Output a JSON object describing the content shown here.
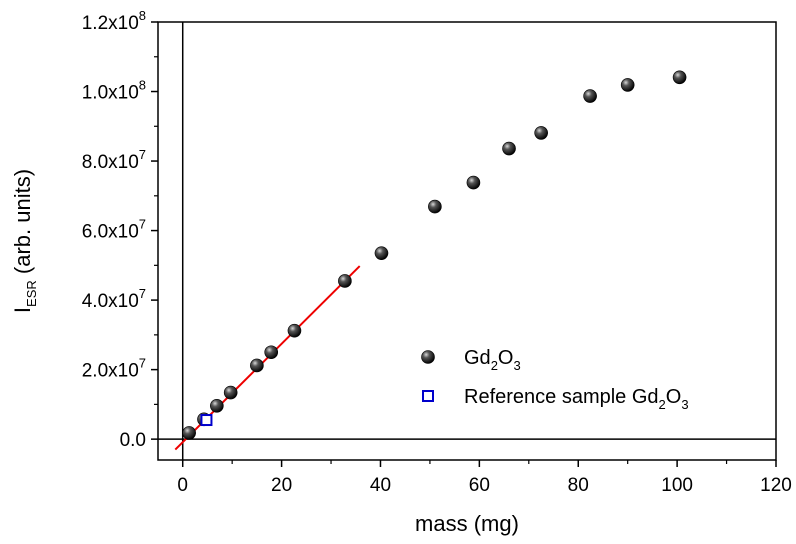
{
  "chart_data": {
    "type": "scatter",
    "title": "",
    "xlabel": "mass (mg)",
    "ylabel": {
      "base": "I",
      "sub": "ESR",
      "rest": " (arb. units)"
    },
    "xlim": [
      -5,
      120
    ],
    "ylim": [
      -6000000,
      120000000
    ],
    "x_ticks": [
      0,
      20,
      40,
      60,
      80,
      100,
      120
    ],
    "y_ticks": [
      {
        "value": 0,
        "mant": "0.0",
        "exp": ""
      },
      {
        "value": 20000000,
        "mant": "2.0x10",
        "exp": "7"
      },
      {
        "value": 40000000,
        "mant": "4.0x10",
        "exp": "7"
      },
      {
        "value": 60000000,
        "mant": "6.0x10",
        "exp": "7"
      },
      {
        "value": 80000000,
        "mant": "8.0x10",
        "exp": "7"
      },
      {
        "value": 100000000,
        "mant": "1.0x10",
        "exp": "8"
      },
      {
        "value": 120000000,
        "mant": "1.2x10",
        "exp": "8"
      }
    ],
    "zero_lines": true,
    "legend_position": "bottom-right",
    "series": [
      {
        "name": {
          "parts": [
            [
              "Gd",
              ""
            ],
            [
              "2",
              "sub"
            ],
            [
              "O",
              ""
            ],
            [
              "3",
              "sub"
            ]
          ]
        },
        "marker": "sphere",
        "color": "#000000",
        "points": [
          [
            1.3,
            1800000
          ],
          [
            4.3,
            5700000
          ],
          [
            6.9,
            9600000
          ],
          [
            9.7,
            13400000
          ],
          [
            15.0,
            21200000
          ],
          [
            17.9,
            25000000
          ],
          [
            22.6,
            31200000
          ],
          [
            32.8,
            45500000
          ],
          [
            40.2,
            53500000
          ],
          [
            51.0,
            66900000
          ],
          [
            58.8,
            73800000
          ],
          [
            66.0,
            83600000
          ],
          [
            72.5,
            88100000
          ],
          [
            82.4,
            98700000
          ],
          [
            90.0,
            101900000
          ],
          [
            100.5,
            104100000
          ]
        ]
      },
      {
        "name": {
          "parts": [
            [
              "Reference sample Gd",
              ""
            ],
            [
              "2",
              "sub"
            ],
            [
              "O",
              ""
            ],
            [
              "3",
              "sub"
            ]
          ]
        },
        "marker": "open-square",
        "color": "#0000cc",
        "points": [
          [
            4.8,
            5500000
          ]
        ]
      }
    ],
    "fit_line": {
      "color": "#ee0000",
      "x": [
        -1.5,
        35.8
      ],
      "y": [
        -3000000,
        49800000
      ]
    }
  }
}
